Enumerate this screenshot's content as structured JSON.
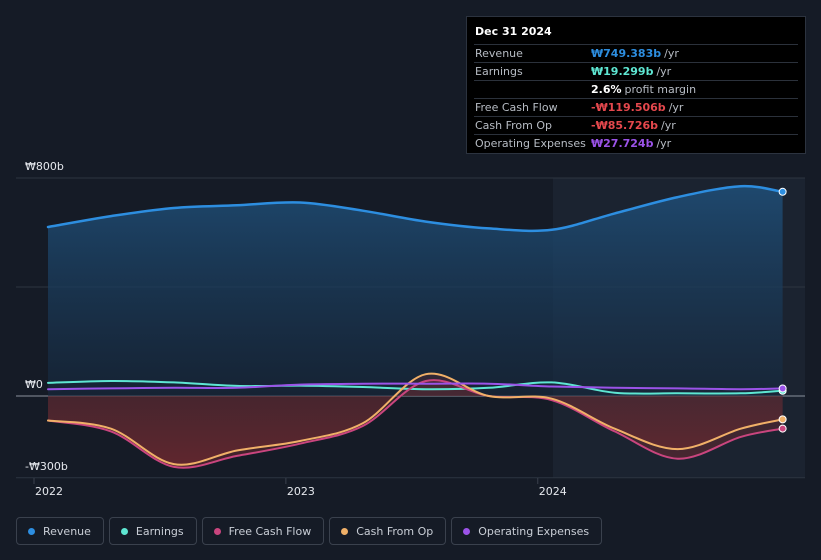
{
  "chart_data": {
    "type": "area",
    "x_ticks": [
      "2022",
      "2023",
      "2024"
    ],
    "y_ticks": [
      "₩800b",
      "₩0",
      "-₩300b"
    ],
    "ylim": [
      -300,
      800
    ],
    "unit": "₩ billions per year",
    "series": [
      {
        "name": "Revenue",
        "color": "#2d8ee0",
        "points": [
          [
            "2022-01",
            620
          ],
          [
            "2022-04",
            660
          ],
          [
            "2022-07",
            690
          ],
          [
            "2022-10",
            700
          ],
          [
            "2023-01",
            710
          ],
          [
            "2023-04",
            680
          ],
          [
            "2023-07",
            640
          ],
          [
            "2023-10",
            615
          ],
          [
            "2024-01",
            610
          ],
          [
            "2024-04",
            670
          ],
          [
            "2024-07",
            730
          ],
          [
            "2024-10",
            770
          ],
          [
            "2024-12",
            749.383
          ]
        ]
      },
      {
        "name": "Earnings",
        "color": "#5ee6d2",
        "points": [
          [
            "2022-01",
            48
          ],
          [
            "2022-04",
            55
          ],
          [
            "2022-07",
            50
          ],
          [
            "2022-10",
            37
          ],
          [
            "2023-01",
            38
          ],
          [
            "2023-04",
            33
          ],
          [
            "2023-07",
            25
          ],
          [
            "2023-10",
            30
          ],
          [
            "2024-01",
            50
          ],
          [
            "2024-04",
            12
          ],
          [
            "2024-07",
            10
          ],
          [
            "2024-10",
            10
          ],
          [
            "2024-12",
            19.299
          ]
        ]
      },
      {
        "name": "Free Cash Flow",
        "color": "#c9457e",
        "points": [
          [
            "2022-01",
            -90
          ],
          [
            "2022-04",
            -130
          ],
          [
            "2022-07",
            -260
          ],
          [
            "2022-10",
            -220
          ],
          [
            "2023-01",
            -175
          ],
          [
            "2023-04",
            -110
          ],
          [
            "2023-07",
            55
          ],
          [
            "2023-10",
            0
          ],
          [
            "2024-01",
            -15
          ],
          [
            "2024-04",
            -130
          ],
          [
            "2024-07",
            -230
          ],
          [
            "2024-10",
            -150
          ],
          [
            "2024-12",
            -119.506
          ]
        ]
      },
      {
        "name": "Cash From Op",
        "color": "#f0b068",
        "points": [
          [
            "2022-01",
            -90
          ],
          [
            "2022-04",
            -120
          ],
          [
            "2022-07",
            -250
          ],
          [
            "2022-10",
            -200
          ],
          [
            "2023-01",
            -165
          ],
          [
            "2023-04",
            -100
          ],
          [
            "2023-07",
            80
          ],
          [
            "2023-10",
            0
          ],
          [
            "2024-01",
            -10
          ],
          [
            "2024-04",
            -120
          ],
          [
            "2024-07",
            -195
          ],
          [
            "2024-10",
            -120
          ],
          [
            "2024-12",
            -85.726
          ]
        ]
      },
      {
        "name": "Operating Expenses",
        "color": "#9b53e8",
        "points": [
          [
            "2022-01",
            25
          ],
          [
            "2022-04",
            28
          ],
          [
            "2022-07",
            30
          ],
          [
            "2022-10",
            30
          ],
          [
            "2023-01",
            42
          ],
          [
            "2023-04",
            45
          ],
          [
            "2023-07",
            45
          ],
          [
            "2023-10",
            45
          ],
          [
            "2024-01",
            35
          ],
          [
            "2024-04",
            30
          ],
          [
            "2024-07",
            28
          ],
          [
            "2024-10",
            25
          ],
          [
            "2024-12",
            27.724
          ]
        ]
      }
    ],
    "legend_position": "bottom",
    "grid": true
  },
  "tooltip": {
    "date": "Dec 31 2024",
    "rows": [
      {
        "label": "Revenue",
        "value": "₩749.383b",
        "unit": "/yr",
        "color": "#2d8ee0"
      },
      {
        "label": "Earnings",
        "value": "₩19.299b",
        "unit": "/yr",
        "color": "#5ee6d2"
      },
      {
        "label": "",
        "value": "2.6%",
        "unit": "profit margin",
        "color": "#ffffff"
      },
      {
        "label": "Free Cash Flow",
        "value": "-₩119.506b",
        "unit": "/yr",
        "color": "#e5484d"
      },
      {
        "label": "Cash From Op",
        "value": "-₩85.726b",
        "unit": "/yr",
        "color": "#e5484d"
      },
      {
        "label": "Operating Expenses",
        "value": "₩27.724b",
        "unit": "/yr",
        "color": "#9b53e8"
      }
    ]
  },
  "legend": [
    {
      "label": "Revenue",
      "color": "#2d8ee0"
    },
    {
      "label": "Earnings",
      "color": "#5ee6d2"
    },
    {
      "label": "Free Cash Flow",
      "color": "#c9457e"
    },
    {
      "label": "Cash From Op",
      "color": "#f0b068"
    },
    {
      "label": "Operating Expenses",
      "color": "#9b53e8"
    }
  ]
}
